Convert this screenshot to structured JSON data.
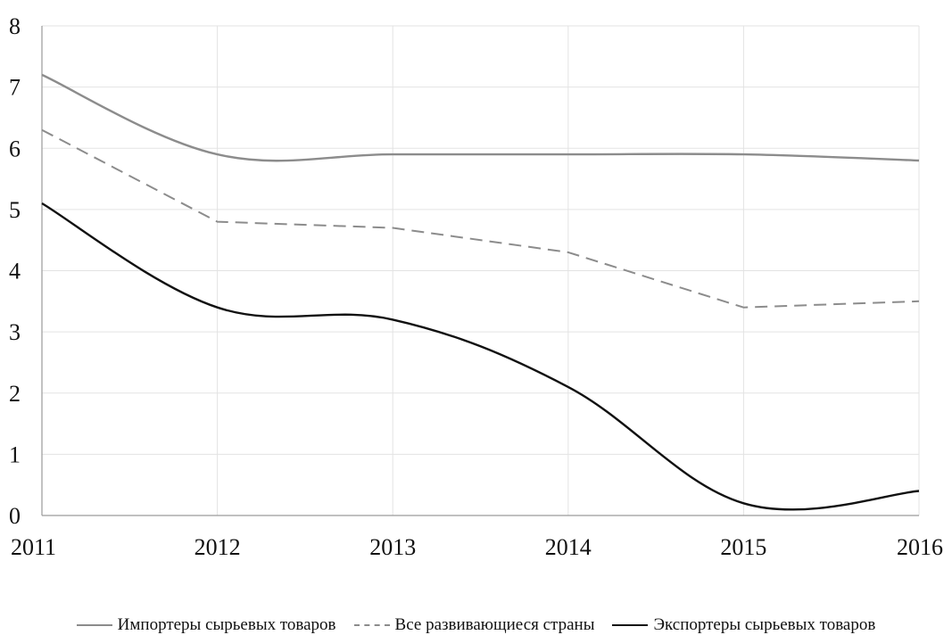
{
  "chart_data": {
    "type": "line",
    "title": "",
    "xlabel": "",
    "ylabel": "",
    "x": [
      2011,
      2012,
      2013,
      2014,
      2015,
      2016
    ],
    "x_tick_labels": [
      "2011",
      "2012",
      "2013",
      "2014",
      "2015",
      "2016"
    ],
    "y_tick_labels": [
      "0",
      "1",
      "2",
      "3",
      "4",
      "5",
      "6",
      "7",
      "8"
    ],
    "ylim": [
      0,
      8
    ],
    "grid": true,
    "legend_position": "bottom",
    "series": [
      {
        "name": "Импортеры сырьевых товаров",
        "values": [
          7.2,
          5.9,
          5.9,
          5.9,
          5.9,
          5.8
        ],
        "color": "#8c8c8c",
        "style": "solid"
      },
      {
        "name": "Все развивающиеся страны",
        "values": [
          6.3,
          4.8,
          4.7,
          4.3,
          3.4,
          3.5
        ],
        "color": "#8c8c8c",
        "style": "dashed"
      },
      {
        "name": "Экспортеры сырьевых товаров",
        "values": [
          5.1,
          3.4,
          3.2,
          2.1,
          0.2,
          0.4
        ],
        "color": "#111111",
        "style": "solid"
      }
    ]
  }
}
